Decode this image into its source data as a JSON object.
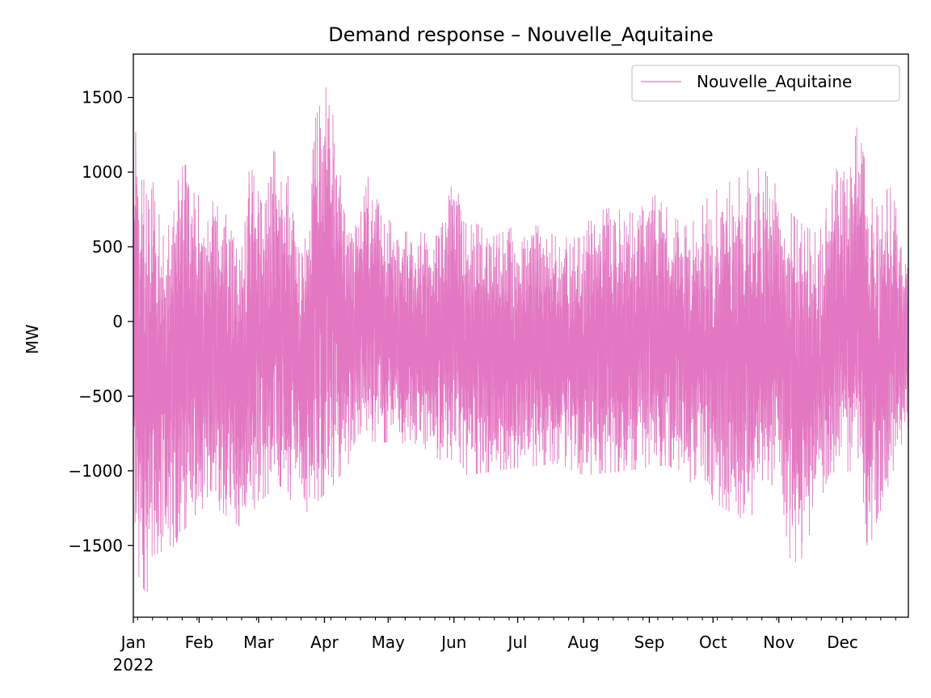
{
  "chart_data": {
    "type": "line",
    "title": "Demand response – Nouvelle_Aquitaine",
    "xlabel": "",
    "ylabel": "MW",
    "x_range": [
      "2022-01-01",
      "2022-12-31"
    ],
    "ylim": [
      -1980,
      1790
    ],
    "yticks": [
      -1500,
      -1000,
      -500,
      0,
      500,
      1000,
      1500
    ],
    "ytick_labels": [
      "−1500",
      "−1000",
      "−500",
      "0",
      "500",
      "1000",
      "1500"
    ],
    "xticks": [
      "2022-01-01",
      "2022-02-01",
      "2022-03-01",
      "2022-04-01",
      "2022-05-01",
      "2022-06-01",
      "2022-07-01",
      "2022-08-01",
      "2022-09-01",
      "2022-10-01",
      "2022-11-01",
      "2022-12-01"
    ],
    "xtick_labels": [
      "Jan",
      "Feb",
      "Mar",
      "Apr",
      "May",
      "Jun",
      "Jul",
      "Aug",
      "Sep",
      "Oct",
      "Nov",
      "Dec"
    ],
    "x_year_label": "2022",
    "grid": false,
    "legend_position": "top-right",
    "series": [
      {
        "name": "Nouvelle_Aquitaine",
        "color": "#e377c2",
        "daily_max": [
          {
            "x": "2022-01-03",
            "y": 1490
          },
          {
            "x": "2022-01-05",
            "y": 920
          },
          {
            "x": "2022-01-09",
            "y": 1040
          },
          {
            "x": "2022-01-15",
            "y": 570
          },
          {
            "x": "2022-01-23",
            "y": 1030
          },
          {
            "x": "2022-01-26",
            "y": 1050
          },
          {
            "x": "2022-02-06",
            "y": 800
          },
          {
            "x": "2022-02-14",
            "y": 800
          },
          {
            "x": "2022-02-20",
            "y": 540
          },
          {
            "x": "2022-02-25",
            "y": 1060
          },
          {
            "x": "2022-03-03",
            "y": 760
          },
          {
            "x": "2022-03-07",
            "y": 1160
          },
          {
            "x": "2022-03-12",
            "y": 1080
          },
          {
            "x": "2022-03-17",
            "y": 890
          },
          {
            "x": "2022-03-22",
            "y": 400
          },
          {
            "x": "2022-03-27",
            "y": 1330
          },
          {
            "x": "2022-04-03",
            "y": 1620
          },
          {
            "x": "2022-04-12",
            "y": 560
          },
          {
            "x": "2022-04-20",
            "y": 1030
          },
          {
            "x": "2022-04-25",
            "y": 830
          },
          {
            "x": "2022-05-05",
            "y": 600
          },
          {
            "x": "2022-05-15",
            "y": 600
          },
          {
            "x": "2022-05-25",
            "y": 570
          },
          {
            "x": "2022-06-01",
            "y": 980
          },
          {
            "x": "2022-06-10",
            "y": 670
          },
          {
            "x": "2022-06-20",
            "y": 570
          },
          {
            "x": "2022-07-01",
            "y": 650
          },
          {
            "x": "2022-07-10",
            "y": 640
          },
          {
            "x": "2022-07-20",
            "y": 560
          },
          {
            "x": "2022-08-01",
            "y": 560
          },
          {
            "x": "2022-08-05",
            "y": 740
          },
          {
            "x": "2022-08-15",
            "y": 760
          },
          {
            "x": "2022-08-25",
            "y": 720
          },
          {
            "x": "2022-09-05",
            "y": 860
          },
          {
            "x": "2022-09-12",
            "y": 700
          },
          {
            "x": "2022-09-20",
            "y": 630
          },
          {
            "x": "2022-09-28",
            "y": 820
          },
          {
            "x": "2022-10-05",
            "y": 910
          },
          {
            "x": "2022-10-12",
            "y": 950
          },
          {
            "x": "2022-10-20",
            "y": 1040
          },
          {
            "x": "2022-10-28",
            "y": 990
          },
          {
            "x": "2022-11-05",
            "y": 750
          },
          {
            "x": "2022-11-12",
            "y": 650
          },
          {
            "x": "2022-11-20",
            "y": 580
          },
          {
            "x": "2022-11-28",
            "y": 1020
          },
          {
            "x": "2022-12-05",
            "y": 1030
          },
          {
            "x": "2022-12-08",
            "y": 1330
          },
          {
            "x": "2022-12-15",
            "y": 820
          },
          {
            "x": "2022-12-24",
            "y": 900
          },
          {
            "x": "2022-12-31",
            "y": 440
          }
        ],
        "daily_min": [
          {
            "x": "2022-01-02",
            "y": -1630
          },
          {
            "x": "2022-01-03",
            "y": -1690
          },
          {
            "x": "2022-01-07",
            "y": -1830
          },
          {
            "x": "2022-01-14",
            "y": -1540
          },
          {
            "x": "2022-01-18",
            "y": -1550
          },
          {
            "x": "2022-01-29",
            "y": -1310
          },
          {
            "x": "2022-02-06",
            "y": -1210
          },
          {
            "x": "2022-02-20",
            "y": -1370
          },
          {
            "x": "2022-03-10",
            "y": -1080
          },
          {
            "x": "2022-03-22",
            "y": -1300
          },
          {
            "x": "2022-04-05",
            "y": -1100
          },
          {
            "x": "2022-04-20",
            "y": -800
          },
          {
            "x": "2022-05-15",
            "y": -820
          },
          {
            "x": "2022-06-05",
            "y": -1030
          },
          {
            "x": "2022-07-01",
            "y": -980
          },
          {
            "x": "2022-07-20",
            "y": -950
          },
          {
            "x": "2022-08-01",
            "y": -1030
          },
          {
            "x": "2022-08-20",
            "y": -1000
          },
          {
            "x": "2022-09-10",
            "y": -960
          },
          {
            "x": "2022-10-05",
            "y": -1240
          },
          {
            "x": "2022-10-20",
            "y": -1370
          },
          {
            "x": "2022-10-31",
            "y": -1020
          },
          {
            "x": "2022-11-08",
            "y": -1750
          },
          {
            "x": "2022-11-25",
            "y": -1010
          },
          {
            "x": "2022-12-08",
            "y": -1000
          },
          {
            "x": "2022-12-13",
            "y": -1540
          },
          {
            "x": "2022-12-23",
            "y": -1080
          },
          {
            "x": "2022-12-31",
            "y": -720
          }
        ]
      }
    ]
  }
}
